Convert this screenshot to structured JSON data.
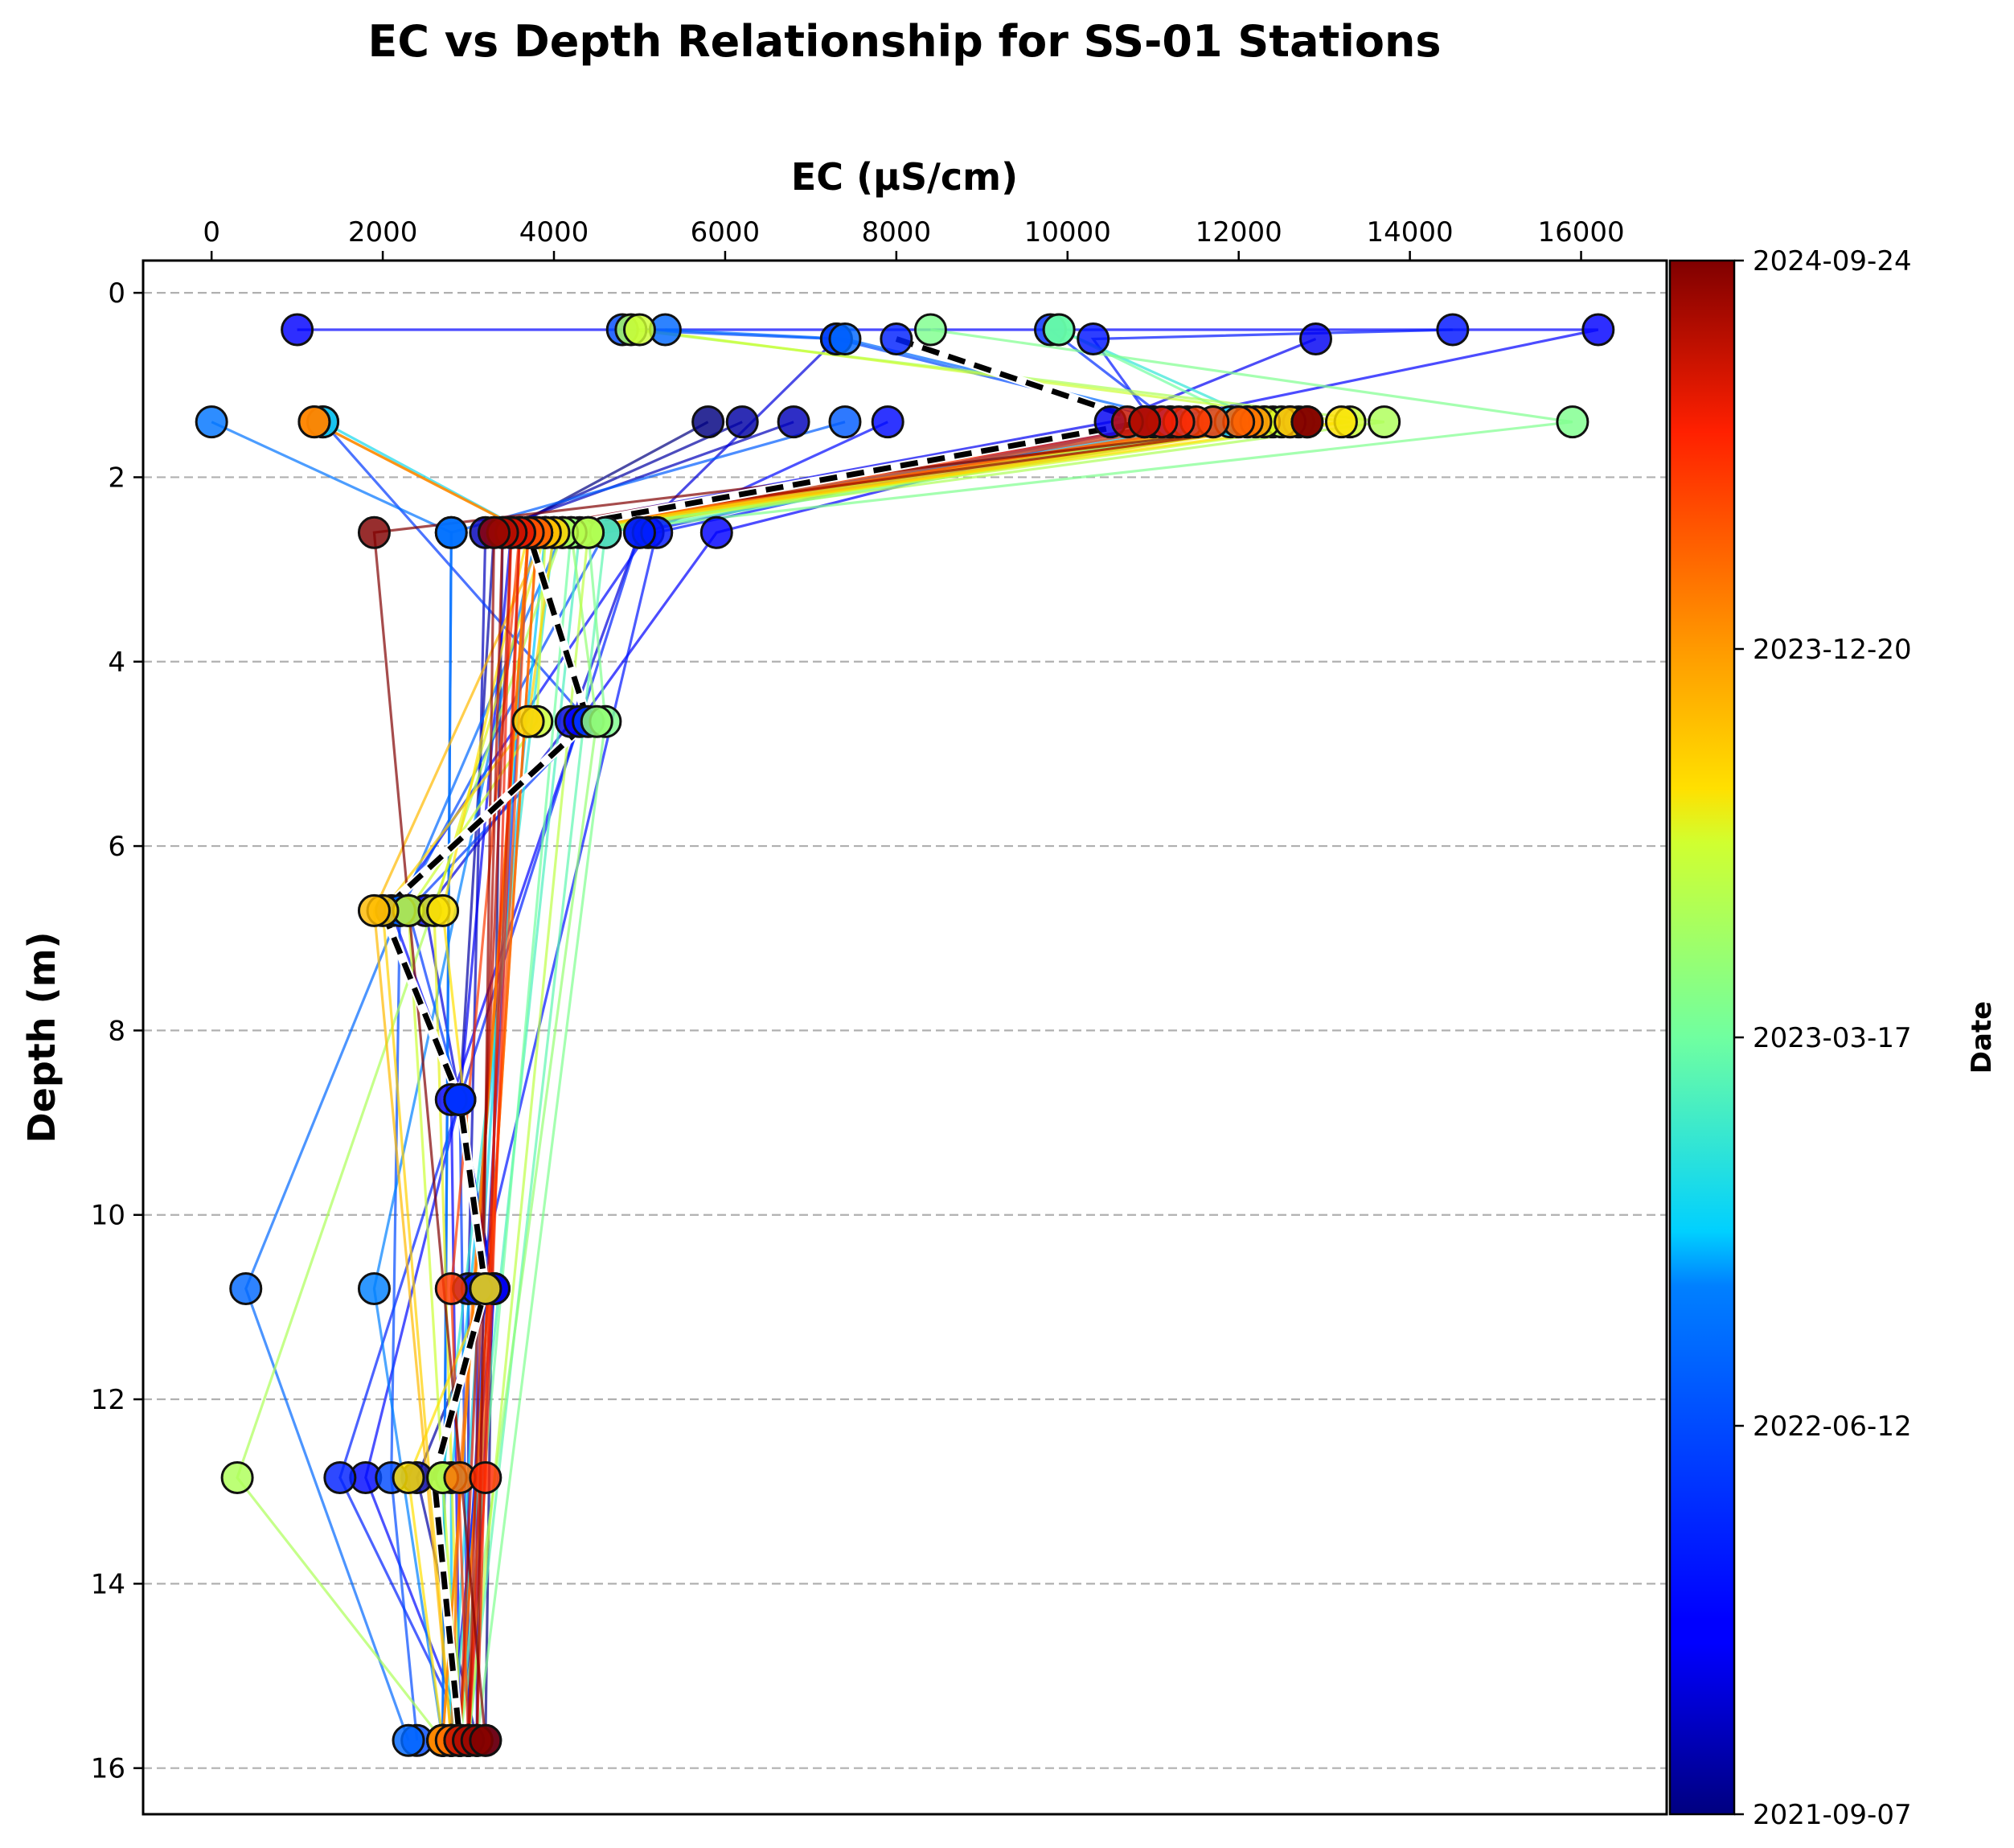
{
  "chart_data": {
    "type": "scatter",
    "title": "EC vs Depth Relationship for SS-01 Stations",
    "xlabel": "EC (µS/cm)",
    "ylabel": "Depth (m)",
    "x_axis_position": "top",
    "y_inverted": true,
    "xlim": [
      -800,
      17000
    ],
    "ylim": [
      16.5,
      -0.35
    ],
    "x_ticks": [
      0,
      2000,
      4000,
      6000,
      8000,
      10000,
      12000,
      14000,
      16000
    ],
    "y_ticks": [
      0,
      2,
      4,
      6,
      8,
      10,
      12,
      14,
      16
    ],
    "grid": "y-dashed",
    "depths": [
      0.4,
      0.5,
      1.4,
      2.6,
      4.65,
      6.7,
      8.75,
      10.8,
      12.85,
      15.7
    ],
    "colorbar": {
      "label": "Date",
      "colormap": "jet",
      "ticks": [
        "2021-09-07",
        "2022-06-12",
        "2023-03-17",
        "2023-12-20",
        "2024-09-24"
      ]
    },
    "series": [
      {
        "t": 0.0,
        "points": [
          [
            5800,
            1.4
          ],
          [
            3400,
            2.6
          ],
          [
            3200,
            15.7
          ]
        ]
      },
      {
        "t": 0.03,
        "points": [
          [
            6200,
            1.4
          ],
          [
            3300,
            2.6
          ],
          [
            2900,
            8.75
          ],
          [
            3300,
            10.8
          ],
          [
            2400,
            12.85
          ],
          [
            3100,
            15.7
          ]
        ]
      },
      {
        "t": 0.05,
        "points": [
          [
            6800,
            1.4
          ],
          [
            3200,
            2.6
          ],
          [
            3000,
            10.8
          ],
          [
            3000,
            15.7
          ]
        ]
      },
      {
        "t": 0.08,
        "points": [
          [
            7300,
            0.5
          ],
          [
            5000,
            2.6
          ],
          [
            4200,
            4.65
          ],
          [
            2500,
            6.7
          ],
          [
            2900,
            8.75
          ],
          [
            3300,
            10.8
          ],
          [
            2800,
            15.7
          ]
        ]
      },
      {
        "t": 0.1,
        "points": [
          [
            12900,
            0.5
          ],
          [
            10500,
            1.4
          ],
          [
            3500,
            2.6
          ],
          [
            2900,
            8.75
          ],
          [
            3300,
            10.8
          ],
          [
            3000,
            15.7
          ]
        ]
      },
      {
        "t": 0.12,
        "points": [
          [
            1000,
            0.4
          ],
          [
            16200,
            0.4
          ],
          [
            11000,
            1.4
          ],
          [
            5900,
            2.6
          ],
          [
            4300,
            4.65
          ],
          [
            2800,
            8.75
          ],
          [
            2900,
            15.7
          ]
        ]
      },
      {
        "t": 0.14,
        "points": [
          [
            7900,
            1.4
          ],
          [
            5100,
            2.6
          ],
          [
            2100,
            6.7
          ],
          [
            2900,
            8.75
          ],
          [
            1800,
            12.85
          ],
          [
            3000,
            15.7
          ]
        ]
      },
      {
        "t": 0.16,
        "points": [
          [
            14500,
            0.4
          ],
          [
            10300,
            0.5
          ],
          [
            11000,
            1.4
          ],
          [
            5200,
            2.6
          ],
          [
            3100,
            10.8
          ],
          [
            3100,
            15.7
          ]
        ]
      },
      {
        "t": 0.18,
        "points": [
          [
            8000,
            0.5
          ],
          [
            10900,
            1.4
          ],
          [
            5000,
            2.6
          ],
          [
            1500,
            12.85
          ],
          [
            3000,
            15.7
          ]
        ]
      },
      {
        "t": 0.2,
        "points": [
          [
            9800,
            0.4
          ],
          [
            11200,
            1.4
          ],
          [
            3700,
            2.6
          ],
          [
            3200,
            10.8
          ],
          [
            2900,
            15.7
          ]
        ]
      },
      {
        "t": 0.22,
        "points": [
          [
            1300,
            1.4
          ],
          [
            4400,
            4.65
          ],
          [
            2300,
            6.7
          ],
          [
            2900,
            8.75
          ],
          [
            3000,
            15.7
          ]
        ]
      },
      {
        "t": 0.25,
        "points": [
          [
            4800,
            0.4
          ],
          [
            7300,
            0.5
          ],
          [
            11200,
            1.4
          ],
          [
            4600,
            2.6
          ],
          [
            2200,
            6.7
          ],
          [
            2100,
            12.85
          ],
          [
            2400,
            15.7
          ]
        ]
      },
      {
        "t": 0.28,
        "points": [
          [
            7400,
            1.4
          ],
          [
            2800,
            2.6
          ],
          [
            2700,
            15.7
          ]
        ]
      },
      {
        "t": 0.3,
        "points": [
          [
            5300,
            0.4
          ],
          [
            7400,
            0.5
          ],
          [
            11400,
            1.4
          ],
          [
            4100,
            2.6
          ],
          [
            2200,
            6.7
          ],
          [
            400,
            10.8
          ],
          [
            2300,
            15.7
          ]
        ]
      },
      {
        "t": 0.32,
        "points": [
          [
            0,
            1.4
          ],
          [
            2800,
            2.6
          ],
          [
            2700,
            15.7
          ]
        ]
      },
      {
        "t": 0.34,
        "points": [
          [
            11700,
            1.4
          ],
          [
            3800,
            2.6
          ],
          [
            1900,
            10.8
          ],
          [
            2700,
            15.7
          ]
        ]
      },
      {
        "t": 0.37,
        "points": [
          [
            11900,
            1.4
          ],
          [
            3900,
            2.6
          ],
          [
            2800,
            12.85
          ],
          [
            2800,
            15.7
          ]
        ]
      },
      {
        "t": 0.4,
        "points": [
          [
            1300,
            1.4
          ],
          [
            3700,
            2.6
          ],
          [
            2800,
            15.7
          ]
        ]
      },
      {
        "t": 0.43,
        "points": [
          [
            9900,
            0.4
          ],
          [
            12300,
            1.4
          ],
          [
            4000,
            2.6
          ],
          [
            2700,
            12.85
          ],
          [
            2800,
            15.7
          ]
        ]
      },
      {
        "t": 0.46,
        "points": [
          [
            12400,
            1.4
          ],
          [
            4300,
            2.6
          ],
          [
            2800,
            15.7
          ]
        ]
      },
      {
        "t": 0.48,
        "points": [
          [
            12600,
            1.4
          ],
          [
            4600,
            2.6
          ],
          [
            3000,
            15.7
          ]
        ]
      },
      {
        "t": 0.5,
        "points": [
          [
            9900,
            0.4
          ],
          [
            12100,
            1.4
          ],
          [
            4200,
            2.6
          ],
          [
            2900,
            15.7
          ]
        ]
      },
      {
        "t": 0.52,
        "points": [
          [
            8400,
            0.4
          ],
          [
            15900,
            1.4
          ],
          [
            4400,
            2.6
          ],
          [
            4600,
            4.65
          ],
          [
            3100,
            15.7
          ]
        ]
      },
      {
        "t": 0.55,
        "points": [
          [
            12700,
            1.4
          ],
          [
            4200,
            2.6
          ],
          [
            4500,
            4.65
          ],
          [
            2900,
            15.7
          ]
        ]
      },
      {
        "t": 0.58,
        "points": [
          [
            4900,
            0.4
          ],
          [
            13700,
            1.4
          ],
          [
            4100,
            2.6
          ],
          [
            300,
            12.85
          ],
          [
            2700,
            15.7
          ]
        ]
      },
      {
        "t": 0.6,
        "points": [
          [
            12500,
            1.4
          ],
          [
            4400,
            2.6
          ],
          [
            3000,
            15.7
          ]
        ]
      },
      {
        "t": 0.62,
        "points": [
          [
            5000,
            0.4
          ],
          [
            13300,
            1.4
          ],
          [
            3900,
            2.6
          ],
          [
            3800,
            4.65
          ],
          [
            2300,
            6.7
          ],
          [
            2700,
            12.85
          ],
          [
            2900,
            15.7
          ]
        ]
      },
      {
        "t": 0.64,
        "points": [
          [
            12300,
            1.4
          ],
          [
            3900,
            2.6
          ],
          [
            2600,
            6.7
          ],
          [
            2900,
            15.7
          ]
        ]
      },
      {
        "t": 0.66,
        "points": [
          [
            13200,
            1.4
          ],
          [
            3700,
            2.6
          ],
          [
            2700,
            6.7
          ],
          [
            3200,
            10.8
          ],
          [
            2300,
            12.85
          ],
          [
            2700,
            15.7
          ]
        ]
      },
      {
        "t": 0.68,
        "points": [
          [
            12800,
            1.4
          ],
          [
            4000,
            2.6
          ],
          [
            3700,
            4.65
          ],
          [
            2000,
            6.7
          ],
          [
            2800,
            15.7
          ]
        ]
      },
      {
        "t": 0.71,
        "points": [
          [
            12600,
            1.4
          ],
          [
            3900,
            2.6
          ],
          [
            1900,
            6.7
          ],
          [
            2800,
            15.7
          ]
        ]
      },
      {
        "t": 0.74,
        "points": [
          [
            1200,
            1.4
          ],
          [
            3700,
            2.6
          ],
          [
            2700,
            15.7
          ]
        ]
      },
      {
        "t": 0.76,
        "points": [
          [
            12200,
            1.4
          ],
          [
            3800,
            2.6
          ],
          [
            2900,
            15.7
          ]
        ]
      },
      {
        "t": 0.78,
        "points": [
          [
            1200,
            1.4
          ],
          [
            3700,
            2.6
          ],
          [
            2700,
            15.7
          ]
        ]
      },
      {
        "t": 0.8,
        "points": [
          [
            12100,
            1.4
          ],
          [
            3700,
            2.6
          ],
          [
            2900,
            12.85
          ],
          [
            2800,
            15.7
          ]
        ]
      },
      {
        "t": 0.82,
        "points": [
          [
            12000,
            1.4
          ],
          [
            3800,
            2.6
          ],
          [
            2900,
            15.7
          ]
        ]
      },
      {
        "t": 0.84,
        "points": [
          [
            11700,
            1.4
          ],
          [
            3700,
            2.6
          ],
          [
            3000,
            15.7
          ]
        ]
      },
      {
        "t": 0.86,
        "points": [
          [
            11500,
            1.4
          ],
          [
            3600,
            2.6
          ],
          [
            2800,
            10.8
          ],
          [
            3000,
            15.7
          ]
        ]
      },
      {
        "t": 0.88,
        "points": [
          [
            11300,
            1.4
          ],
          [
            3600,
            2.6
          ],
          [
            3200,
            12.85
          ],
          [
            3000,
            15.7
          ]
        ]
      },
      {
        "t": 0.9,
        "points": [
          [
            11100,
            1.4
          ],
          [
            3500,
            2.6
          ],
          [
            3100,
            15.7
          ]
        ]
      },
      {
        "t": 0.92,
        "points": [
          [
            10900,
            1.4
          ],
          [
            3600,
            2.6
          ],
          [
            3000,
            15.7
          ]
        ]
      },
      {
        "t": 0.94,
        "points": [
          [
            10700,
            1.4
          ],
          [
            3500,
            2.6
          ],
          [
            2900,
            15.7
          ]
        ]
      },
      {
        "t": 0.96,
        "points": [
          [
            10900,
            1.4
          ],
          [
            3400,
            2.6
          ],
          [
            3000,
            15.7
          ]
        ]
      },
      {
        "t": 0.98,
        "points": [
          [
            12800,
            1.4
          ],
          [
            3300,
            2.6
          ],
          [
            3100,
            15.7
          ]
        ]
      },
      {
        "t": 1.0,
        "points": [
          [
            12800,
            1.4
          ],
          [
            1900,
            2.6
          ],
          [
            3200,
            15.7
          ]
        ]
      }
    ],
    "mean_profile": {
      "style": "black-dashed",
      "points": [
        [
          8000,
          0.5
        ],
        [
          10900,
          1.4
        ],
        [
          3700,
          2.6
        ],
        [
          4400,
          4.65
        ],
        [
          2000,
          6.7
        ],
        [
          2900,
          8.75
        ],
        [
          3200,
          10.8
        ],
        [
          2600,
          12.85
        ],
        [
          2900,
          15.7
        ]
      ]
    }
  }
}
